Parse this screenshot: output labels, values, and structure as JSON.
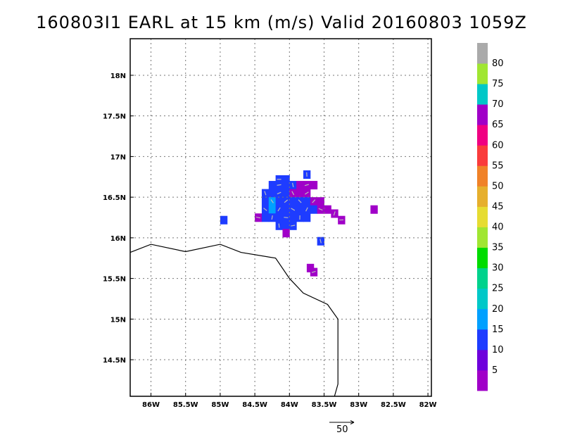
{
  "title": "160803I1 EARL at 15 km (m/s) Valid 20160803 1059Z",
  "chart_data": {
    "type": "heatmap",
    "title": "160803I1 EARL at 15 km (m/s) Valid 20160803 1059Z",
    "xlim": [
      -86.3,
      -81.95
    ],
    "ylim": [
      14.05,
      18.45
    ],
    "x_ticks": [
      {
        "value": -86,
        "label": "86W"
      },
      {
        "value": -85.5,
        "label": "85.5W"
      },
      {
        "value": -85,
        "label": "85W"
      },
      {
        "value": -84.5,
        "label": "84.5W"
      },
      {
        "value": -84,
        "label": "84W"
      },
      {
        "value": -83.5,
        "label": "83.5W"
      },
      {
        "value": -83,
        "label": "83W"
      },
      {
        "value": -82.5,
        "label": "82.5W"
      },
      {
        "value": -82,
        "label": "82W"
      }
    ],
    "y_ticks": [
      {
        "value": 14.5,
        "label": "14.5N"
      },
      {
        "value": 15,
        "label": "15N"
      },
      {
        "value": 15.5,
        "label": "15.5N"
      },
      {
        "value": 16,
        "label": "16N"
      },
      {
        "value": 16.5,
        "label": "16.5N"
      },
      {
        "value": 17,
        "label": "17N"
      },
      {
        "value": 17.5,
        "label": "17.5N"
      },
      {
        "value": 18,
        "label": "18N"
      }
    ],
    "grid": true,
    "colorbar": {
      "labels": [
        "5",
        "10",
        "15",
        "20",
        "25",
        "30",
        "35",
        "40",
        "45",
        "50",
        "55",
        "60",
        "65",
        "70",
        "75",
        "80"
      ],
      "colors": [
        "#a000c8",
        "#6e00dc",
        "#1e3cff",
        "#00a0ff",
        "#00c8c8",
        "#00d28c",
        "#00dc00",
        "#a0e632",
        "#e6dc32",
        "#e6af2d",
        "#f08228",
        "#fa3c3c",
        "#f00082",
        "#a000c8",
        "#00c8c8",
        "#a0e632",
        "#aaaaaa"
      ]
    },
    "reference_vector": {
      "label": "50",
      "value": 50
    },
    "coastline": [
      [
        -86.3,
        15.82
      ],
      [
        -86.0,
        15.92
      ],
      [
        -85.5,
        15.83
      ],
      [
        -85.0,
        15.92
      ],
      [
        -84.7,
        15.82
      ],
      [
        -84.2,
        15.75
      ],
      [
        -84.0,
        15.5
      ],
      [
        -83.8,
        15.32
      ],
      [
        -83.45,
        15.18
      ],
      [
        -83.3,
        15.0
      ],
      [
        -83.3,
        14.2
      ],
      [
        -83.35,
        14.05
      ]
    ],
    "cells": [
      {
        "lon": -84.15,
        "lat": 16.72,
        "v": 10
      },
      {
        "lon": -84.05,
        "lat": 16.72,
        "v": 10
      },
      {
        "lon": -83.75,
        "lat": 16.78,
        "v": 10
      },
      {
        "lon": -84.25,
        "lat": 16.65,
        "v": 10
      },
      {
        "lon": -84.15,
        "lat": 16.65,
        "v": 10
      },
      {
        "lon": -84.05,
        "lat": 16.65,
        "v": 10
      },
      {
        "lon": -83.95,
        "lat": 16.65,
        "v": 10
      },
      {
        "lon": -83.85,
        "lat": 16.65,
        "v": 5
      },
      {
        "lon": -83.75,
        "lat": 16.65,
        "v": 5
      },
      {
        "lon": -83.65,
        "lat": 16.65,
        "v": 5
      },
      {
        "lon": -84.35,
        "lat": 16.55,
        "v": 10
      },
      {
        "lon": -84.25,
        "lat": 16.55,
        "v": 10
      },
      {
        "lon": -84.15,
        "lat": 16.55,
        "v": 10
      },
      {
        "lon": -84.05,
        "lat": 16.55,
        "v": 10
      },
      {
        "lon": -83.95,
        "lat": 16.55,
        "v": 5
      },
      {
        "lon": -83.85,
        "lat": 16.55,
        "v": 5
      },
      {
        "lon": -83.75,
        "lat": 16.55,
        "v": 5
      },
      {
        "lon": -84.35,
        "lat": 16.45,
        "v": 10
      },
      {
        "lon": -84.25,
        "lat": 16.45,
        "v": 15
      },
      {
        "lon": -84.15,
        "lat": 16.45,
        "v": 10
      },
      {
        "lon": -84.05,
        "lat": 16.45,
        "v": 10
      },
      {
        "lon": -83.95,
        "lat": 16.45,
        "v": 10
      },
      {
        "lon": -83.85,
        "lat": 16.45,
        "v": 10
      },
      {
        "lon": -83.75,
        "lat": 16.45,
        "v": 10
      },
      {
        "lon": -83.65,
        "lat": 16.45,
        "v": 5
      },
      {
        "lon": -83.55,
        "lat": 16.45,
        "v": 5
      },
      {
        "lon": -84.35,
        "lat": 16.35,
        "v": 10
      },
      {
        "lon": -84.25,
        "lat": 16.35,
        "v": 15
      },
      {
        "lon": -84.15,
        "lat": 16.35,
        "v": 10
      },
      {
        "lon": -84.05,
        "lat": 16.35,
        "v": 10
      },
      {
        "lon": -83.95,
        "lat": 16.35,
        "v": 10
      },
      {
        "lon": -83.85,
        "lat": 16.35,
        "v": 10
      },
      {
        "lon": -83.75,
        "lat": 16.35,
        "v": 10
      },
      {
        "lon": -83.65,
        "lat": 16.35,
        "v": 10
      },
      {
        "lon": -83.55,
        "lat": 16.35,
        "v": 5
      },
      {
        "lon": -83.45,
        "lat": 16.35,
        "v": 5
      },
      {
        "lon": -83.35,
        "lat": 16.3,
        "v": 5
      },
      {
        "lon": -82.78,
        "lat": 16.35,
        "v": 5
      },
      {
        "lon": -84.45,
        "lat": 16.25,
        "v": 5
      },
      {
        "lon": -84.35,
        "lat": 16.25,
        "v": 10
      },
      {
        "lon": -84.25,
        "lat": 16.25,
        "v": 10
      },
      {
        "lon": -84.15,
        "lat": 16.25,
        "v": 10
      },
      {
        "lon": -84.05,
        "lat": 16.25,
        "v": 10
      },
      {
        "lon": -83.95,
        "lat": 16.25,
        "v": 10
      },
      {
        "lon": -83.85,
        "lat": 16.25,
        "v": 10
      },
      {
        "lon": -83.75,
        "lat": 16.25,
        "v": 10
      },
      {
        "lon": -83.25,
        "lat": 16.22,
        "v": 5
      },
      {
        "lon": -84.95,
        "lat": 16.22,
        "v": 10
      },
      {
        "lon": -84.15,
        "lat": 16.15,
        "v": 10
      },
      {
        "lon": -84.05,
        "lat": 16.15,
        "v": 10
      },
      {
        "lon": -83.95,
        "lat": 16.15,
        "v": 10
      },
      {
        "lon": -84.05,
        "lat": 16.06,
        "v": 5
      },
      {
        "lon": -83.55,
        "lat": 15.96,
        "v": 10
      },
      {
        "lon": -83.7,
        "lat": 15.63,
        "v": 5
      },
      {
        "lon": -83.65,
        "lat": 15.58,
        "v": 5
      }
    ]
  }
}
